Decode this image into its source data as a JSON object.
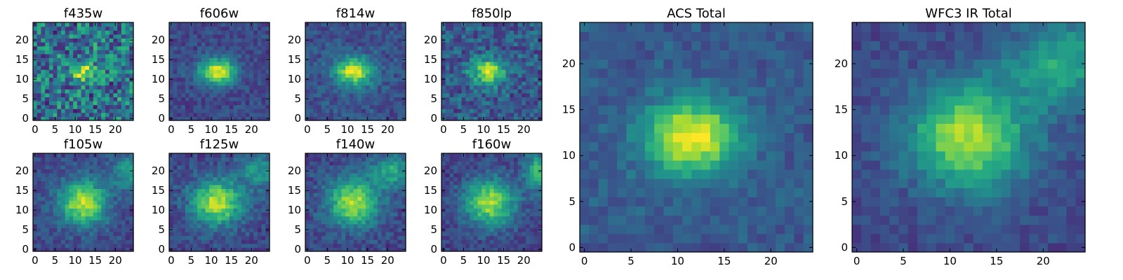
{
  "figure_title": "",
  "colormap": "viridis",
  "viridis_stops": [
    "#440154",
    "#472d7b",
    "#3b528b",
    "#2c728e",
    "#21918c",
    "#28ae80",
    "#5ec962",
    "#addc30",
    "#fde725"
  ],
  "chart_data": [
    {
      "type": "heatmap",
      "title": "f435w",
      "grid_size": 25,
      "xticks": [
        0,
        5,
        10,
        15,
        20
      ],
      "yticks": [
        0,
        5,
        10,
        15,
        20
      ],
      "xlim": [
        -0.5,
        24.5
      ],
      "ylim": [
        -0.5,
        24.5
      ],
      "sources": [
        {
          "x": 12,
          "y": 12,
          "amp": 0.55,
          "sx": 2.0,
          "sy": 1.5
        }
      ],
      "background": 0.38,
      "noise": 0.28,
      "seed": 11
    },
    {
      "type": "heatmap",
      "title": "f606w",
      "grid_size": 25,
      "xticks": [
        0,
        5,
        10,
        15,
        20
      ],
      "yticks": [
        0,
        5,
        10,
        15,
        20
      ],
      "xlim": [
        -0.5,
        24.5
      ],
      "ylim": [
        -0.5,
        24.5
      ],
      "sources": [
        {
          "x": 11.5,
          "y": 12,
          "amp": 0.75,
          "sx": 3.2,
          "sy": 2.3
        }
      ],
      "background": 0.22,
      "noise": 0.09,
      "seed": 23
    },
    {
      "type": "heatmap",
      "title": "f814w",
      "grid_size": 25,
      "xticks": [
        0,
        5,
        10,
        15,
        20
      ],
      "yticks": [
        0,
        5,
        10,
        15,
        20
      ],
      "xlim": [
        -0.5,
        24.5
      ],
      "ylim": [
        -0.5,
        24.5
      ],
      "sources": [
        {
          "x": 11.5,
          "y": 12,
          "amp": 0.7,
          "sx": 3.4,
          "sy": 2.5
        }
      ],
      "background": 0.25,
      "noise": 0.1,
      "seed": 37
    },
    {
      "type": "heatmap",
      "title": "f850lp",
      "grid_size": 25,
      "xticks": [
        0,
        5,
        10,
        15,
        20
      ],
      "yticks": [
        0,
        5,
        10,
        15,
        20
      ],
      "xlim": [
        -0.5,
        24.5
      ],
      "ylim": [
        -0.5,
        24.5
      ],
      "sources": [
        {
          "x": 11,
          "y": 12,
          "amp": 0.6,
          "sx": 3.0,
          "sy": 2.4
        }
      ],
      "background": 0.28,
      "noise": 0.16,
      "seed": 41
    },
    {
      "type": "heatmap",
      "title": "f105w",
      "grid_size": 25,
      "xticks": [
        0,
        5,
        10,
        15,
        20
      ],
      "yticks": [
        0,
        5,
        10,
        15,
        20
      ],
      "xlim": [
        -0.5,
        24.5
      ],
      "ylim": [
        -0.5,
        24.5
      ],
      "sources": [
        {
          "x": 12,
          "y": 12,
          "amp": 0.68,
          "sx": 4.2,
          "sy": 4.0
        },
        {
          "x": 23,
          "y": 20,
          "amp": 0.35,
          "sx": 2.5,
          "sy": 3.0
        }
      ],
      "background": 0.22,
      "noise": 0.1,
      "seed": 53
    },
    {
      "type": "heatmap",
      "title": "f125w",
      "grid_size": 25,
      "xticks": [
        0,
        5,
        10,
        15,
        20
      ],
      "yticks": [
        0,
        5,
        10,
        15,
        20
      ],
      "xlim": [
        -0.5,
        24.5
      ],
      "ylim": [
        -0.5,
        24.5
      ],
      "sources": [
        {
          "x": 11.5,
          "y": 12,
          "amp": 0.68,
          "sx": 4.4,
          "sy": 4.0
        },
        {
          "x": 22,
          "y": 20,
          "amp": 0.33,
          "sx": 3.5,
          "sy": 3.0
        }
      ],
      "background": 0.22,
      "noise": 0.1,
      "seed": 67
    },
    {
      "type": "heatmap",
      "title": "f140w",
      "grid_size": 25,
      "xticks": [
        0,
        5,
        10,
        15,
        20
      ],
      "yticks": [
        0,
        5,
        10,
        15,
        20
      ],
      "xlim": [
        -0.5,
        24.5
      ],
      "ylim": [
        -0.5,
        24.5
      ],
      "sources": [
        {
          "x": 11.5,
          "y": 12,
          "amp": 0.66,
          "sx": 4.4,
          "sy": 4.2
        },
        {
          "x": 21.5,
          "y": 20,
          "amp": 0.36,
          "sx": 4.0,
          "sy": 3.0
        }
      ],
      "background": 0.22,
      "noise": 0.1,
      "seed": 71
    },
    {
      "type": "heatmap",
      "title": "f160w",
      "grid_size": 25,
      "xticks": [
        0,
        5,
        10,
        15,
        20
      ],
      "yticks": [
        0,
        5,
        10,
        15,
        20
      ],
      "xlim": [
        -0.5,
        24.5
      ],
      "ylim": [
        -0.5,
        24.5
      ],
      "sources": [
        {
          "x": 11.5,
          "y": 12,
          "amp": 0.66,
          "sx": 4.4,
          "sy": 4.2
        },
        {
          "x": 23.5,
          "y": 20,
          "amp": 0.45,
          "sx": 2.5,
          "sy": 3.5
        }
      ],
      "background": 0.2,
      "noise": 0.1,
      "seed": 89
    },
    {
      "type": "heatmap",
      "title": "ACS Total",
      "grid_size": 25,
      "xticks": [
        0,
        5,
        10,
        15,
        20
      ],
      "yticks": [
        0,
        5,
        10,
        15,
        20
      ],
      "xlim": [
        -0.5,
        24.5
      ],
      "ylim": [
        -0.5,
        24.5
      ],
      "sources": [
        {
          "x": 11.5,
          "y": 12,
          "amp": 0.72,
          "sx": 3.6,
          "sy": 2.8
        }
      ],
      "background": 0.28,
      "noise": 0.07,
      "seed": 97
    },
    {
      "type": "heatmap",
      "title": "WFC3 IR Total",
      "grid_size": 25,
      "xticks": [
        0,
        5,
        10,
        15,
        20
      ],
      "yticks": [
        0,
        5,
        10,
        15,
        20
      ],
      "xlim": [
        -0.5,
        24.5
      ],
      "ylim": [
        -0.5,
        24.5
      ],
      "sources": [
        {
          "x": 12,
          "y": 12,
          "amp": 0.66,
          "sx": 4.4,
          "sy": 4.0
        },
        {
          "x": 22,
          "y": 20,
          "amp": 0.38,
          "sx": 4.0,
          "sy": 3.2
        }
      ],
      "background": 0.22,
      "noise": 0.07,
      "seed": 101
    }
  ]
}
